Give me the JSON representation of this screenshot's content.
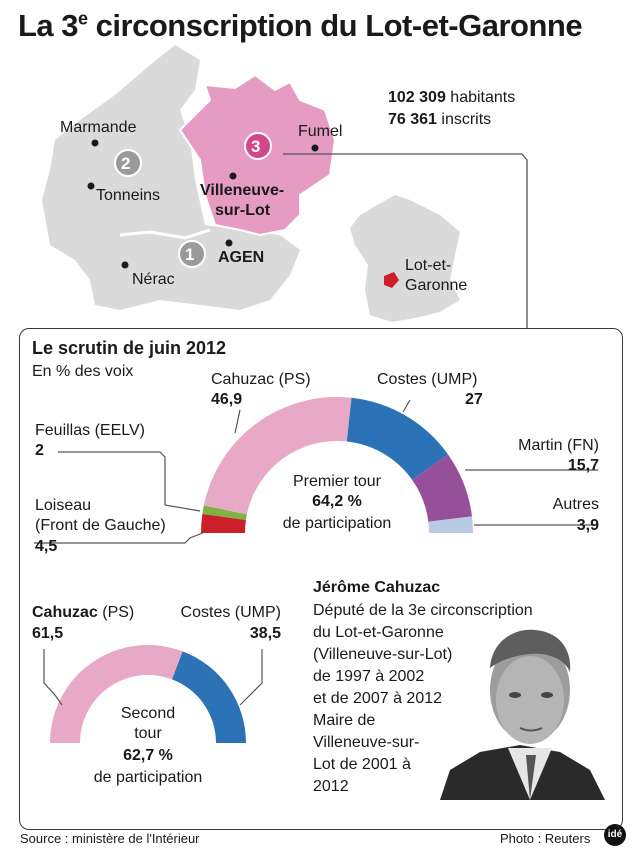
{
  "title": {
    "prefix": "La 3",
    "sup": "e",
    "rest": " circonscription du Lot-et-Garonne"
  },
  "stats": {
    "habitants_value": "102 309",
    "habitants_label": " habitants",
    "inscrits_value": "76 361",
    "inscrits_label": " inscrits"
  },
  "map": {
    "towns": [
      "Marmande",
      "Tonneins",
      "Fumel",
      "Nérac"
    ],
    "villeneuve": [
      "Villeneuve-",
      "sur-Lot"
    ],
    "agen": "AGEN",
    "circ_numbers": [
      "1",
      "2",
      "3"
    ],
    "france_label": [
      "Lot-et-",
      "Garonne"
    ],
    "colors": {
      "region_grey": "#dadada",
      "circ3_pink": "#e59bc2",
      "highlight_red": "#cc1f2a",
      "circle_grey": "#9a9a9a",
      "circle_pink": "#d3468a"
    }
  },
  "panel": {
    "title": "Le scrutin de juin 2012",
    "subtitle": "En % des voix",
    "first_round": {
      "center": [
        "Premier tour",
        "64,2 %",
        "de participation"
      ],
      "candidates": [
        {
          "name": "Cahuzac (PS)",
          "value": "46,9",
          "color": "#e8a9c6"
        },
        {
          "name": "Costes (UMP)",
          "value": "27",
          "color": "#2b72b7"
        },
        {
          "name": "Martin (FN)",
          "value": "15,7",
          "color": "#96509a"
        },
        {
          "name": "Autres",
          "value": "3,9",
          "color": "#b9cbe4"
        },
        {
          "name": "Feuillas (EELV)",
          "value": "2",
          "color": "#7cb342"
        },
        {
          "name_lines": [
            "Loiseau",
            "(Front de Gauche)"
          ],
          "value": "4,5",
          "color": "#cc1f2a"
        }
      ]
    },
    "second_round": {
      "center": [
        "Second",
        "tour",
        "62,7 %",
        "de participation"
      ],
      "cahuzac_name": "Cahuzac",
      "cahuzac_party": " (PS)",
      "cahuzac_value": "61,5",
      "costes_name": "Costes (UMP)",
      "costes_value": "38,5",
      "colors": {
        "cahuzac": "#e8a9c6",
        "costes": "#2b72b7"
      }
    },
    "bio": {
      "name": "Jérôme Cahuzac",
      "lines": [
        "Député de la 3e circonscription",
        "du Lot-et-Garonne",
        "(Villeneuve-sur-Lot)",
        "de 1997 à 2002",
        "et de 2007 à 2012",
        "Maire de",
        "Villeneuve-sur-",
        "Lot de 2001 à",
        "2012"
      ]
    }
  },
  "footer": {
    "source": "Source : ministère de l'Intérieur",
    "photo": "Photo : Reuters",
    "logo": "idé"
  }
}
